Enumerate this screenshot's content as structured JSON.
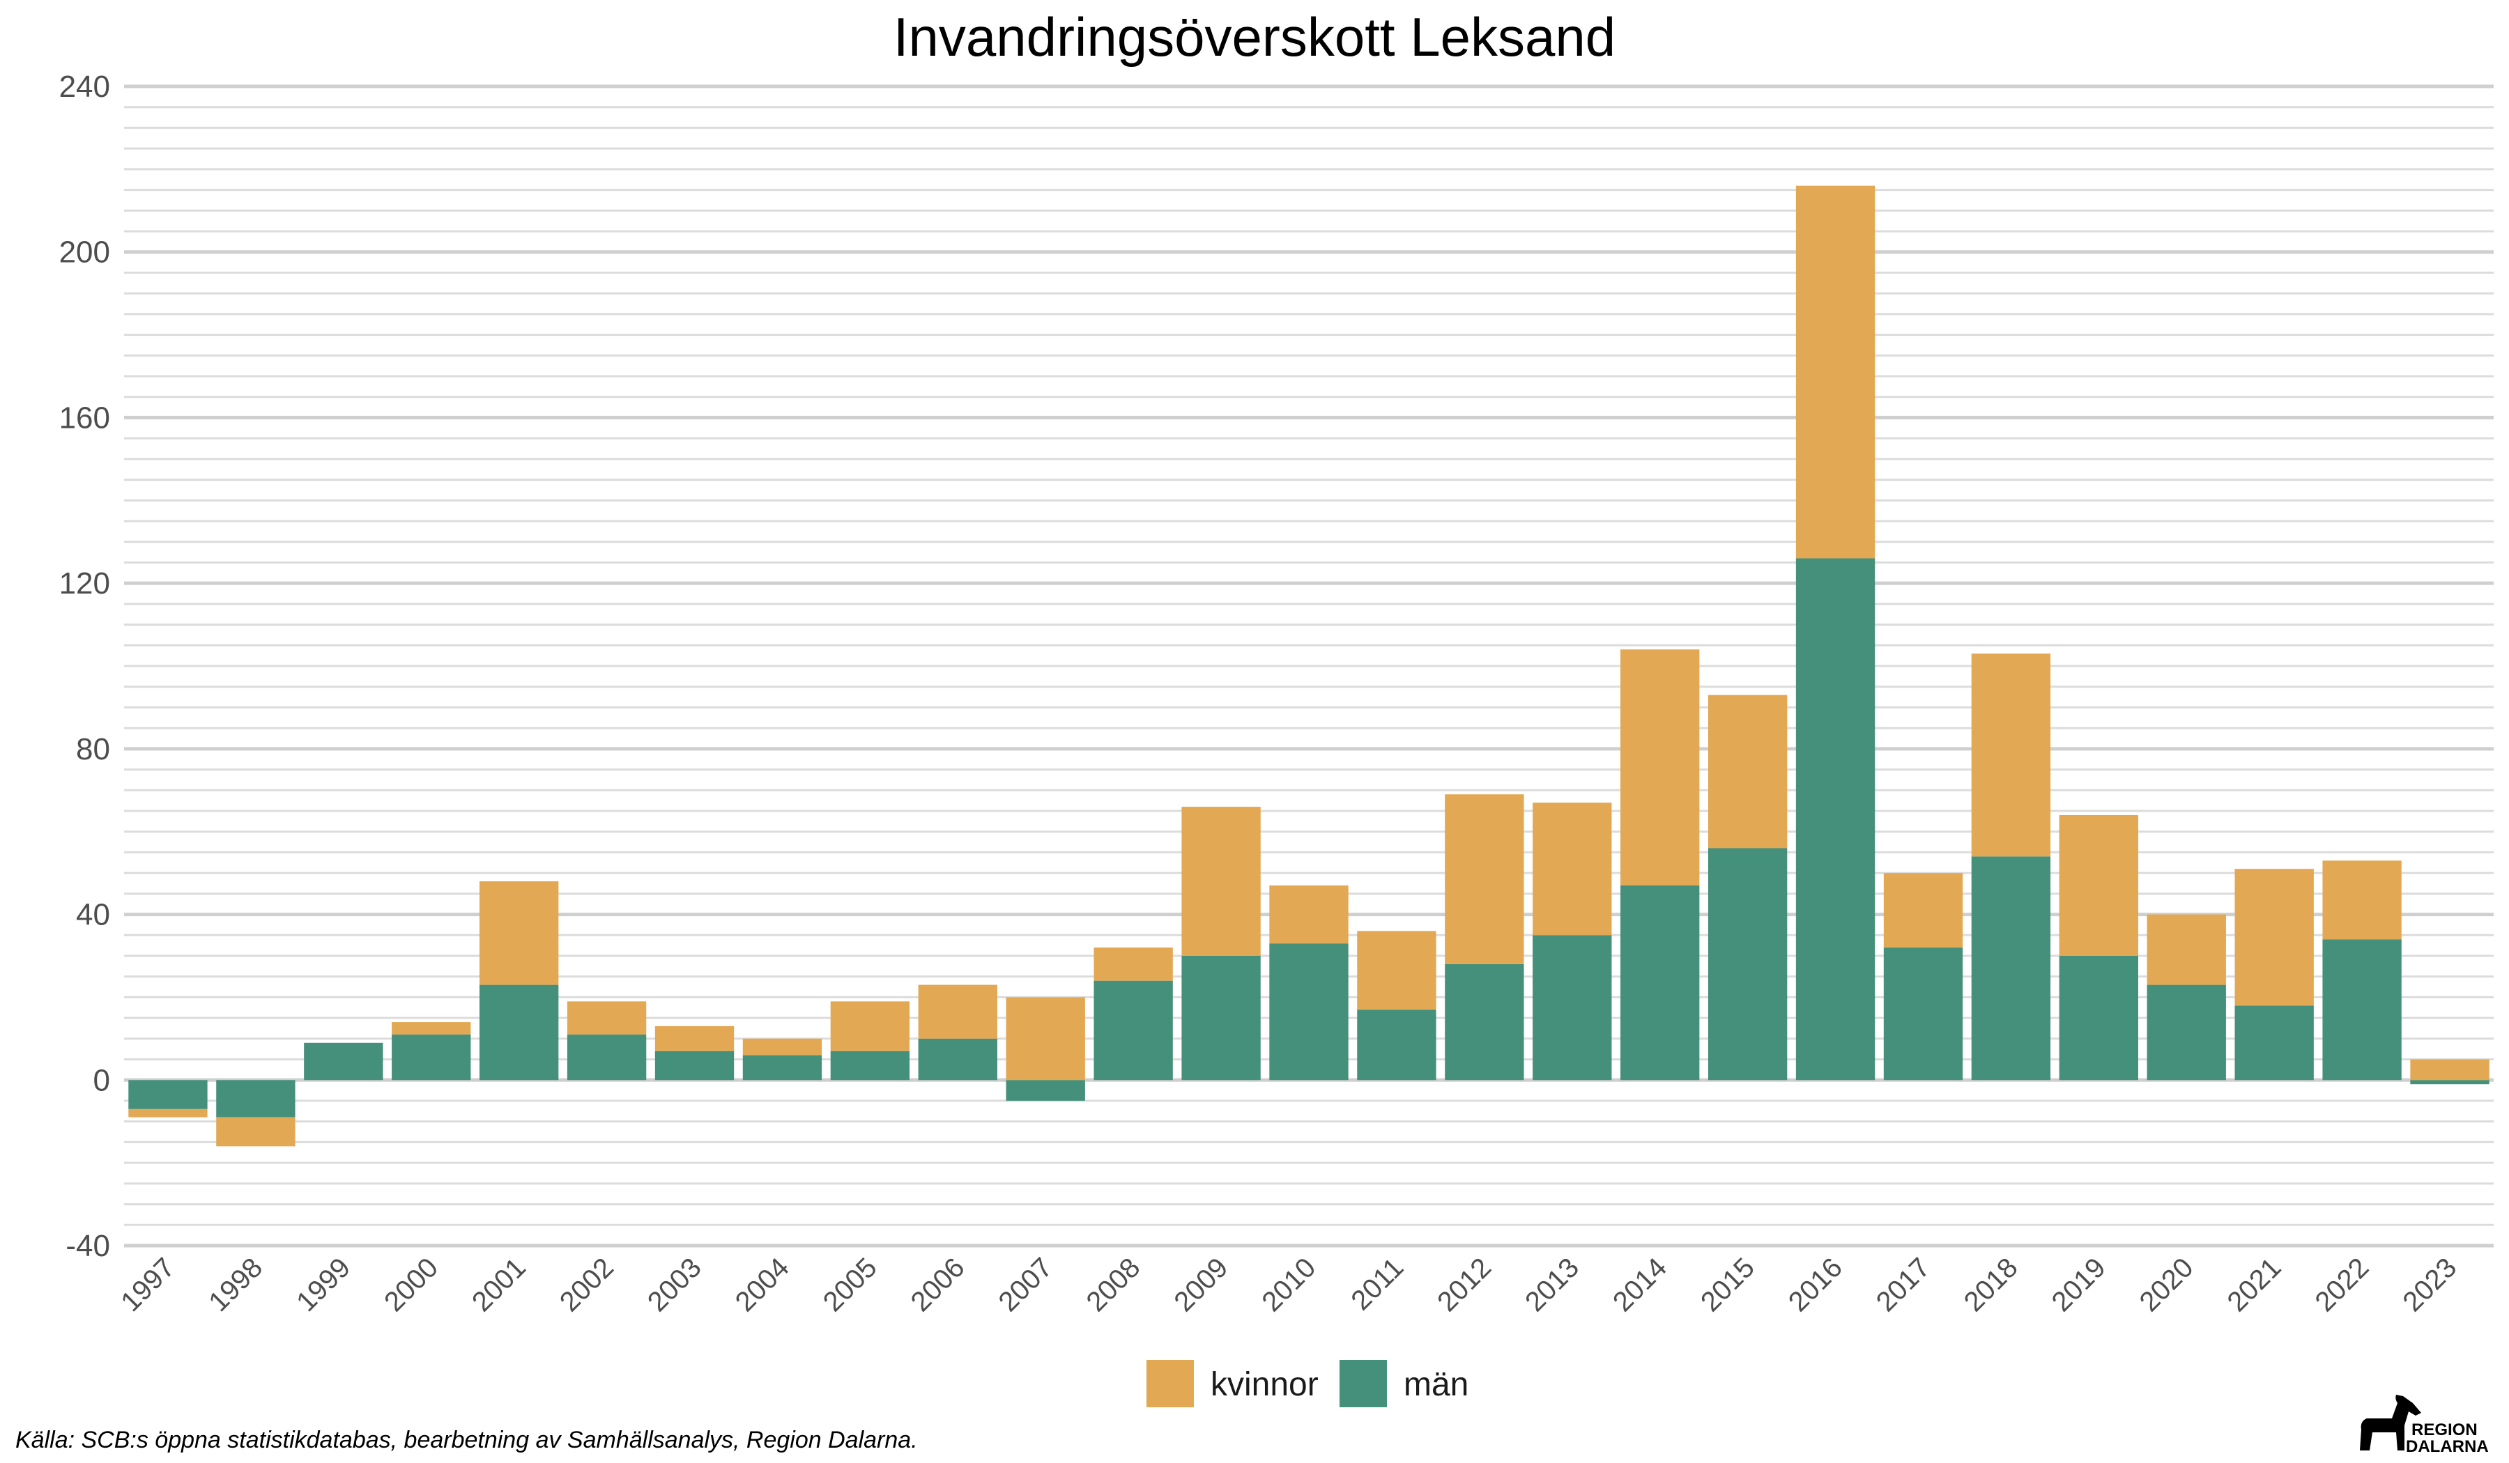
{
  "chart_data": {
    "type": "bar",
    "stacked": true,
    "title": "Invandringsöverskott Leksand",
    "xlabel": "",
    "ylabel": "",
    "ylim": [
      -40,
      240
    ],
    "yticks": [
      -40,
      0,
      40,
      80,
      120,
      160,
      200,
      240
    ],
    "grid": true,
    "legend_position": "bottom",
    "categories": [
      "1997",
      "1998",
      "1999",
      "2000",
      "2001",
      "2002",
      "2003",
      "2004",
      "2005",
      "2006",
      "2007",
      "2008",
      "2009",
      "2010",
      "2011",
      "2012",
      "2013",
      "2014",
      "2015",
      "2016",
      "2017",
      "2018",
      "2019",
      "2020",
      "2021",
      "2022",
      "2023"
    ],
    "series": [
      {
        "name": "män",
        "color": "#44907a",
        "values": [
          -7,
          -9,
          9,
          11,
          23,
          11,
          7,
          6,
          7,
          10,
          -5,
          24,
          30,
          33,
          17,
          28,
          35,
          47,
          56,
          126,
          32,
          54,
          30,
          23,
          18,
          34,
          -1
        ]
      },
      {
        "name": "kvinnor",
        "color": "#e2a854",
        "values": [
          -2,
          -7,
          0,
          3,
          25,
          8,
          6,
          4,
          12,
          13,
          20,
          8,
          36,
          14,
          19,
          41,
          32,
          57,
          37,
          90,
          18,
          49,
          34,
          17,
          33,
          19,
          5
        ]
      }
    ],
    "source": "Källa: SCB:s öppna statistikdatabas, bearbetning av Samhällsanalys, Region Dalarna.",
    "logo_text": [
      "REGION",
      "DALARNA"
    ]
  }
}
